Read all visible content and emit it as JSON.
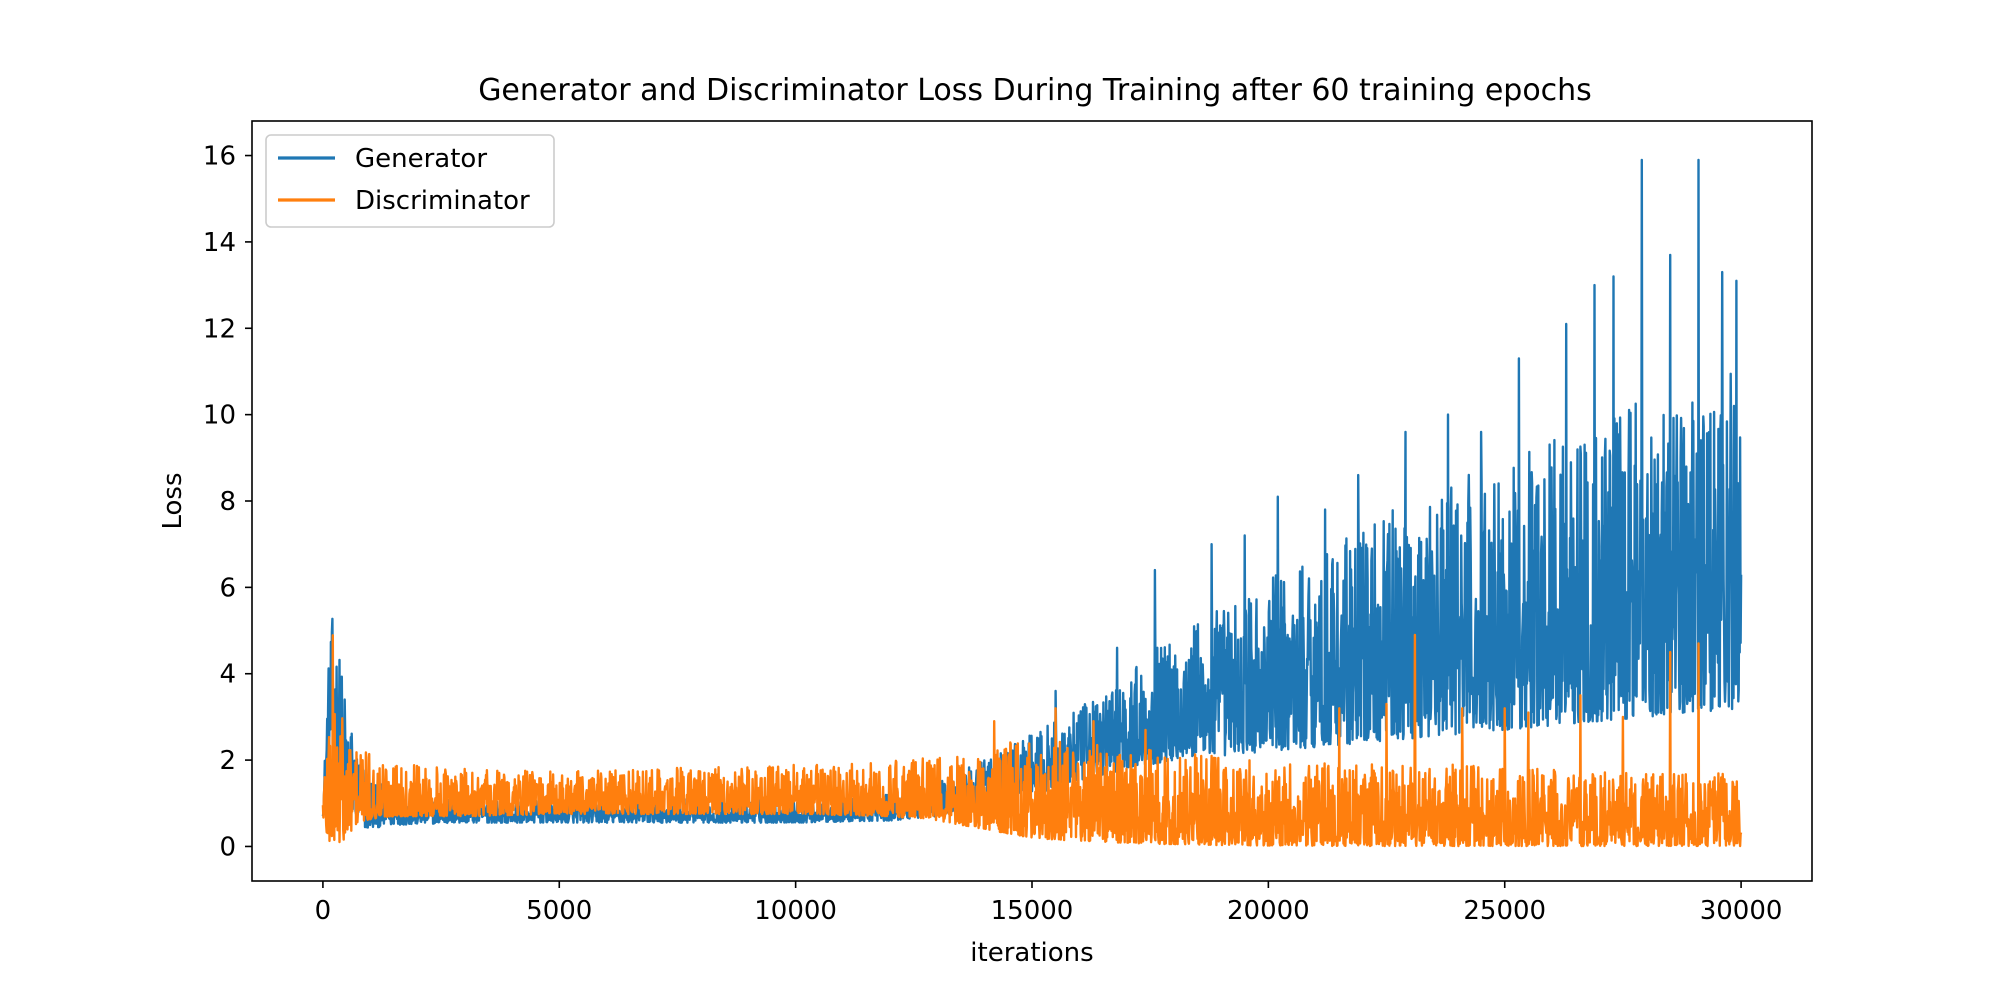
{
  "chart_data": {
    "type": "line",
    "title": "Generator and Discriminator Loss During Training after 60 training epochs",
    "xlabel": "iterations",
    "ylabel": "Loss",
    "xlim": [
      -1500,
      31500
    ],
    "ylim": [
      -0.8,
      16.8
    ],
    "x_ticks": [
      0,
      5000,
      10000,
      15000,
      20000,
      25000,
      30000
    ],
    "y_ticks": [
      0,
      2,
      4,
      6,
      8,
      10,
      12,
      14,
      16
    ],
    "grid": false,
    "legend_position": "top-left",
    "series": [
      {
        "name": "Generator",
        "color": "#1f77b4",
        "approx_envelope": {
          "x": [
            0,
            100,
            200,
            350,
            500,
            700,
            900,
            1500,
            3000,
            5000,
            7000,
            10000,
            12000,
            13000,
            14000,
            15000,
            16000,
            17000,
            18000,
            19000,
            20000,
            21000,
            22000,
            23000,
            24000,
            25000,
            26000,
            27000,
            28000,
            29000,
            30000
          ],
          "low": [
            0.7,
            1.5,
            2.5,
            1.5,
            0.9,
            0.7,
            0.4,
            0.5,
            0.55,
            0.55,
            0.55,
            0.55,
            0.6,
            0.7,
            1.0,
            1.2,
            1.5,
            1.8,
            2.0,
            2.1,
            2.2,
            2.3,
            2.4,
            2.5,
            2.6,
            2.7,
            2.8,
            2.9,
            3.0,
            3.1,
            3.2
          ],
          "high": [
            0.9,
            4.0,
            5.3,
            4.5,
            3.4,
            2.4,
            1.8,
            1.2,
            1.1,
            1.05,
            1.1,
            1.1,
            1.2,
            1.5,
            2.0,
            2.6,
            3.2,
            4.0,
            5.0,
            5.6,
            6.2,
            6.8,
            7.5,
            8.0,
            8.5,
            9.0,
            9.5,
            10.0,
            10.5,
            11.0,
            11.0
          ],
          "spikes": [
            [
              15500,
              3.6
            ],
            [
              16800,
              4.6
            ],
            [
              17600,
              6.4
            ],
            [
              18800,
              7.0
            ],
            [
              19500,
              7.2
            ],
            [
              20200,
              8.1
            ],
            [
              21200,
              7.8
            ],
            [
              21900,
              8.6
            ],
            [
              22900,
              9.6
            ],
            [
              23800,
              10.0
            ],
            [
              24500,
              9.6
            ],
            [
              25300,
              11.3
            ],
            [
              26300,
              12.1
            ],
            [
              26900,
              13.0
            ],
            [
              27300,
              13.2
            ],
            [
              27900,
              15.9
            ],
            [
              28500,
              13.7
            ],
            [
              29100,
              15.9
            ],
            [
              29600,
              13.3
            ],
            [
              29900,
              13.1
            ]
          ]
        }
      },
      {
        "name": "Discriminator",
        "color": "#ff7f0e",
        "approx_envelope": {
          "x": [
            0,
            100,
            200,
            300,
            500,
            700,
            900,
            1500,
            3000,
            5000,
            7000,
            10000,
            12000,
            13000,
            14000,
            15000,
            16000,
            17000,
            18000,
            19000,
            20000,
            22000,
            24000,
            26000,
            28000,
            30000
          ],
          "low": [
            0.7,
            0.1,
            0.03,
            0.05,
            0.2,
            0.5,
            0.6,
            0.7,
            0.7,
            0.75,
            0.75,
            0.75,
            0.7,
            0.6,
            0.4,
            0.2,
            0.12,
            0.08,
            0.05,
            0.03,
            0.02,
            0.01,
            0.01,
            0.01,
            0.01,
            0.01
          ],
          "high": [
            1.5,
            3.5,
            5.1,
            3.8,
            2.8,
            2.5,
            2.2,
            2.0,
            1.8,
            1.75,
            1.8,
            1.9,
            2.0,
            2.1,
            2.3,
            2.5,
            2.4,
            2.3,
            2.2,
            2.1,
            2.0,
            1.9,
            1.9,
            1.8,
            1.7,
            1.7
          ],
          "spikes": [
            [
              14200,
              2.9
            ],
            [
              15500,
              3.2
            ],
            [
              16300,
              2.9
            ],
            [
              17400,
              2.7
            ],
            [
              21500,
              3.2
            ],
            [
              22500,
              3.3
            ],
            [
              23100,
              4.9
            ],
            [
              24100,
              3.2
            ],
            [
              25000,
              3.2
            ],
            [
              25500,
              3.1
            ],
            [
              26600,
              3.5
            ],
            [
              27500,
              3.0
            ],
            [
              28500,
              4.5
            ],
            [
              29100,
              4.7
            ]
          ]
        }
      }
    ]
  }
}
